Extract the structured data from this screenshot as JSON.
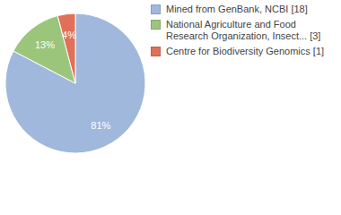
{
  "chart_data": {
    "type": "pie",
    "categories": [
      "Mined from GenBank, NCBI [18]",
      "National Agriculture and Food Research Organization, Insect... [3]",
      "Centre for Biodiversity Genomics [1]"
    ],
    "values": [
      81,
      13,
      4
    ],
    "value_labels": [
      "81%",
      "13%",
      "4%"
    ],
    "colors": [
      "#a0b8dc",
      "#9cc57c",
      "#e0705a"
    ],
    "data_labels": true,
    "legend": "top-right"
  }
}
